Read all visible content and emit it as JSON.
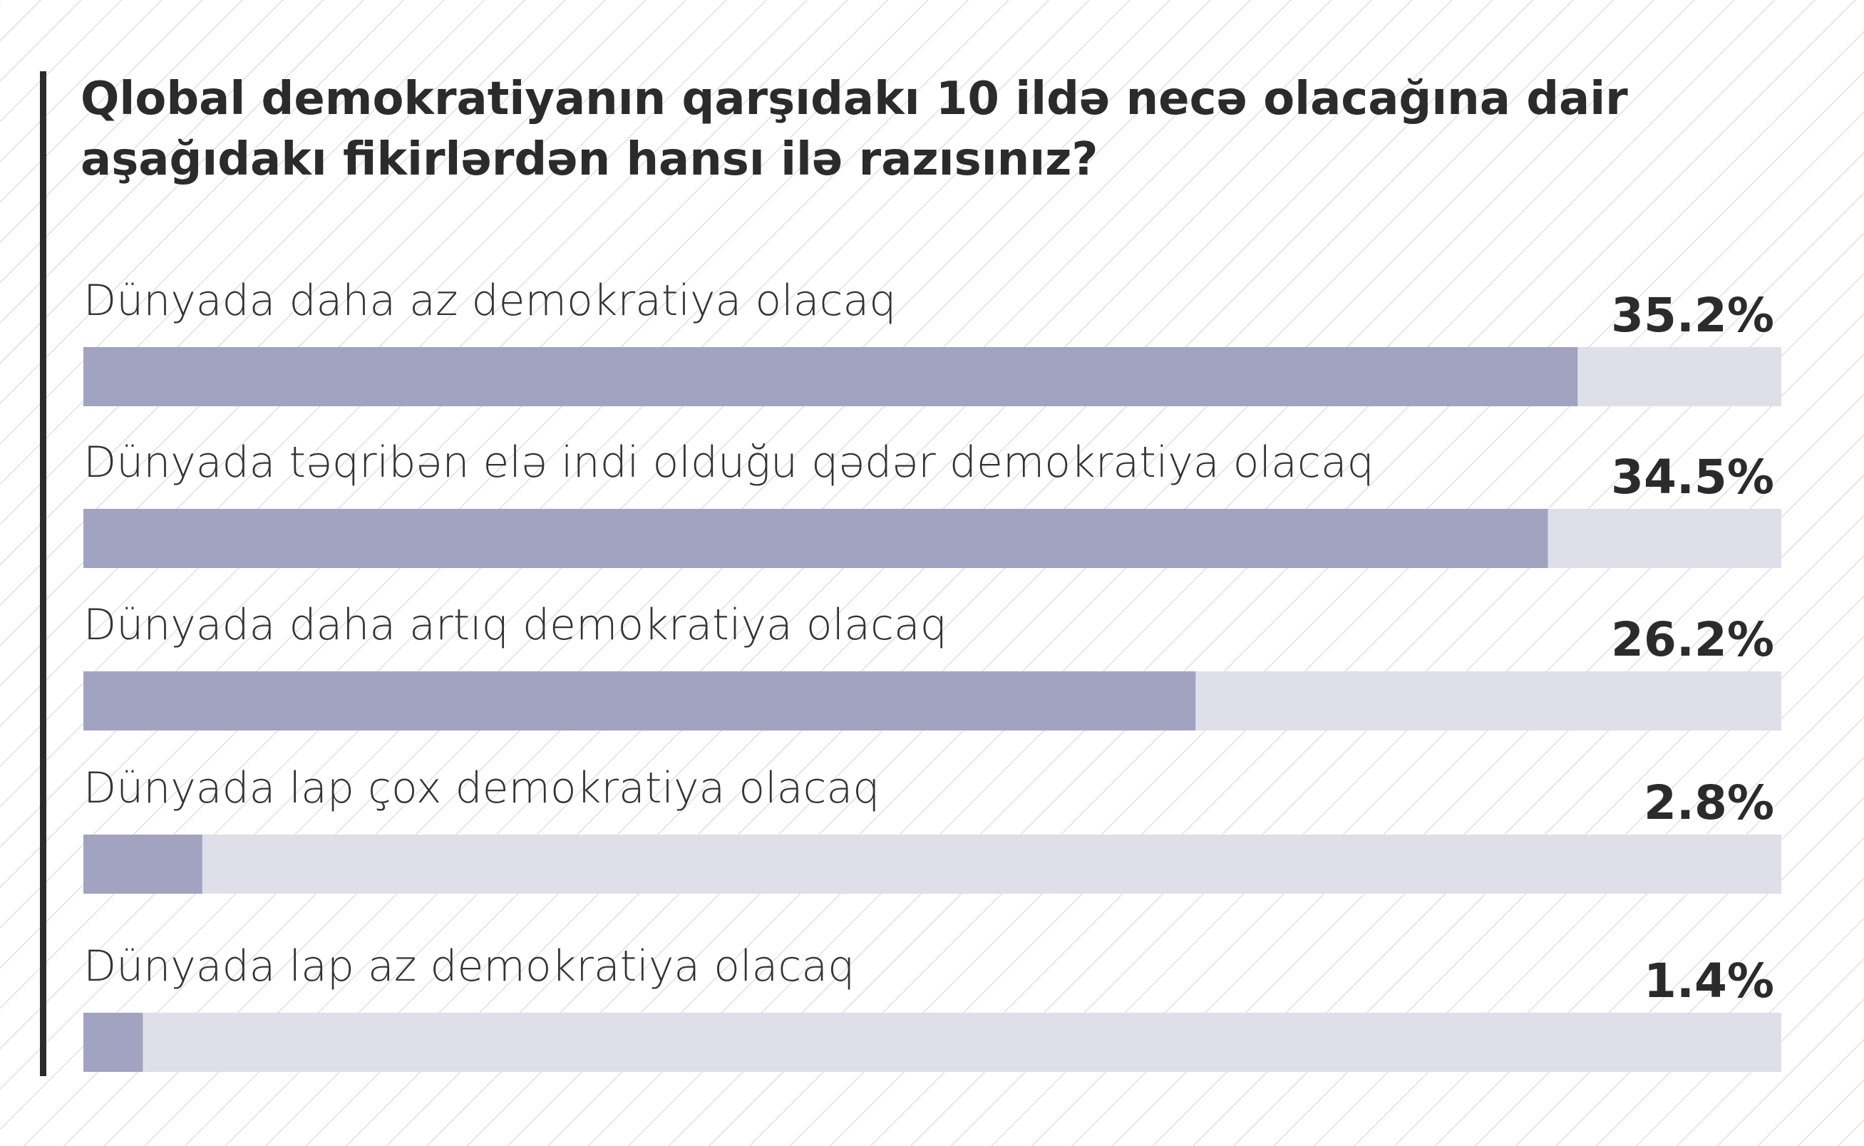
{
  "chart_data": {
    "type": "bar",
    "orientation": "horizontal",
    "title": [
      "Qlobal demokratiyanın qarşıdakı 10 ildə necə olacağına dair",
      "aşağıdakı fikirlərdən hansı ilə razısınız?"
    ],
    "categories": [
      "Dünyada daha az demokratiya olacaq",
      "Dünyada təqribən elə indi olduğu qədər demokratiya olacaq",
      "Dünyada daha artıq demokratiya olacaq",
      "Dünyada lap çox demokratiya olacaq",
      "Dünyada lap az demokratiya olacaq"
    ],
    "values": [
      35.2,
      34.5,
      26.2,
      2.8,
      1.4
    ],
    "value_labels": [
      "35.2%",
      "34.5%",
      "26.2%",
      "2.8%",
      "1.4%"
    ],
    "color": "#a2a3c0",
    "track_color": "#dfdfe9",
    "xlim": [
      0,
      40
    ]
  }
}
